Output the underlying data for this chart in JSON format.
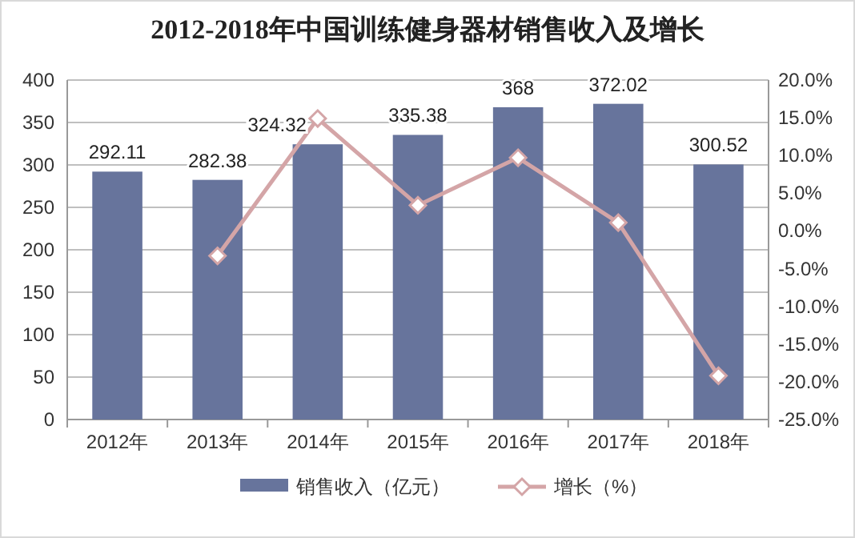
{
  "chart_data": {
    "type": "bar",
    "title": "2012-2018年中国训练健身器材销售收入及增长",
    "categories": [
      "2012年",
      "2013年",
      "2014年",
      "2015年",
      "2016年",
      "2017年",
      "2018年"
    ],
    "series": [
      {
        "name": "销售收入（亿元）",
        "color": "#67749c",
        "values": [
          292.11,
          282.38,
          324.32,
          335.38,
          368,
          372.02,
          300.52
        ],
        "value_labels": [
          "292.11",
          "282.38",
          "324.32",
          "335.38",
          "368",
          "372.02",
          "300.52"
        ]
      },
      {
        "name": "增长（%）",
        "type": "line",
        "axis": "y2",
        "color": "#d4a5a7",
        "marker": "diamond",
        "values": [
          null,
          -3.3,
          14.9,
          3.4,
          9.7,
          1.1,
          -19.2
        ]
      }
    ],
    "ylim": [
      0,
      400
    ],
    "yticks": [
      0,
      50,
      100,
      150,
      200,
      250,
      300,
      350,
      400
    ],
    "y2lim": [
      -25,
      20
    ],
    "y2ticks": [
      {
        "value": -25,
        "label": "-25.0%"
      },
      {
        "value": -20,
        "label": "-20.0%"
      },
      {
        "value": -15,
        "label": "-15.0%"
      },
      {
        "value": -10,
        "label": "-10.0%"
      },
      {
        "value": -5,
        "label": "-5.0%"
      },
      {
        "value": 0,
        "label": "0.0%"
      },
      {
        "value": 5,
        "label": "5.0%"
      },
      {
        "value": 10,
        "label": "10.0%"
      },
      {
        "value": 15,
        "label": "15.0%"
      },
      {
        "value": 20,
        "label": "20.0%"
      }
    ],
    "grid": "y",
    "legend": "bottom"
  }
}
